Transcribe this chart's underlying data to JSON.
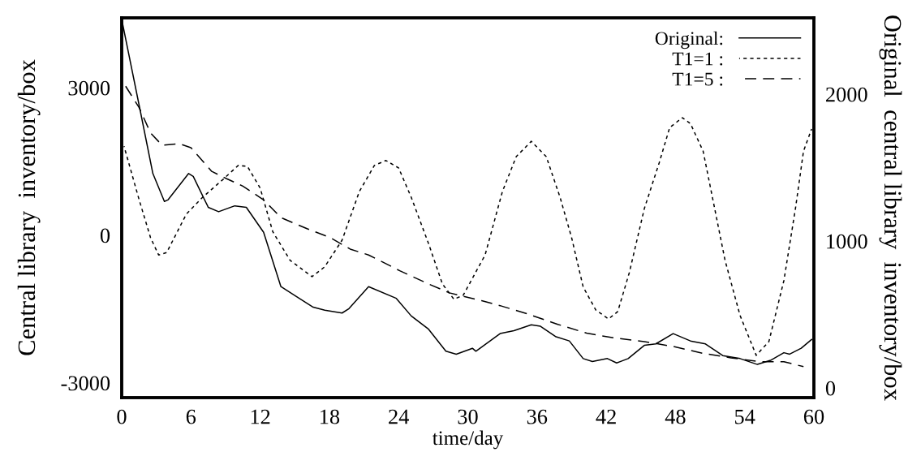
{
  "chart_data": {
    "type": "line",
    "xlabel": "time/day",
    "ylabel": "Central library  inventory/box",
    "y2label": "Original  central library  inventory/box",
    "xlim": [
      0,
      60
    ],
    "xticks": [
      0,
      6,
      12,
      18,
      24,
      30,
      36,
      42,
      48,
      54,
      60
    ],
    "ylim": [
      -3300,
      4420
    ],
    "yticks": [
      -3000,
      0,
      3000
    ],
    "y2lim": [
      -66,
      2520
    ],
    "y2ticks": [
      0,
      1000,
      2000
    ],
    "grid": false,
    "legend": "top right",
    "marker": "none",
    "series": [
      {
        "name": "Original:",
        "color": "#000000",
        "axis": "y2",
        "line_style": "solid",
        "x": [
          0,
          1.6,
          2.7,
          3.7,
          4.0,
          5.8,
          6.2,
          7.5,
          8.4,
          9.8,
          10.8,
          12.3,
          13.8,
          15.0,
          16.6,
          17.6,
          19.1,
          19.7,
          21.4,
          23.8,
          25.1,
          26.6,
          28.1,
          29.0,
          30.4,
          30.7,
          32.8,
          34.0,
          35.5,
          36.3,
          37.6,
          38.8,
          40.0,
          40.8,
          42.1,
          42.9,
          43.9,
          45.3,
          46.3,
          47.8,
          49.3,
          50.6,
          52.1,
          53.6,
          55.1,
          56.3,
          57.4,
          57.9,
          58.9,
          59.8
        ],
        "values": [
          2510,
          1890,
          1460,
          1270,
          1280,
          1460,
          1440,
          1230,
          1200,
          1240,
          1230,
          1060,
          690,
          630,
          550,
          530,
          510,
          540,
          690,
          610,
          490,
          400,
          250,
          230,
          270,
          250,
          370,
          390,
          430,
          420,
          350,
          320,
          200,
          180,
          200,
          170,
          200,
          290,
          300,
          370,
          320,
          300,
          220,
          200,
          160,
          190,
          240,
          230,
          270,
          330
        ]
      },
      {
        "name": "T1=1 :",
        "color": "#000000",
        "axis": "y",
        "line_style": "dotted",
        "x": [
          0.2,
          1.5,
          2.5,
          3.2,
          3.9,
          5.6,
          7.0,
          8.8,
          10.1,
          10.9,
          12.0,
          13.1,
          14.6,
          16.5,
          17.6,
          19.1,
          20.6,
          21.9,
          22.9,
          24.0,
          25.1,
          26.6,
          27.8,
          28.8,
          29.6,
          31.5,
          33.0,
          34.2,
          35.5,
          36.8,
          38.0,
          39.0,
          40.0,
          41.1,
          42.2,
          43.0,
          44.0,
          45.3,
          46.6,
          47.5,
          48.6,
          49.3,
          50.4,
          51.3,
          52.3,
          53.6,
          55.0,
          56.1,
          57.4,
          58.4,
          59.1,
          59.8
        ],
        "values": [
          1810,
          730,
          -50,
          -400,
          -350,
          430,
          770,
          1140,
          1420,
          1400,
          960,
          70,
          -510,
          -840,
          -640,
          -100,
          890,
          1420,
          1520,
          1370,
          770,
          -170,
          -990,
          -1300,
          -1220,
          -400,
          890,
          1600,
          1910,
          1600,
          770,
          -50,
          -1050,
          -1520,
          -1700,
          -1550,
          -760,
          540,
          1480,
          2190,
          2390,
          2270,
          1710,
          660,
          -510,
          -1630,
          -2440,
          -2160,
          -920,
          540,
          1710,
          2160
        ]
      },
      {
        "name": "T1=5 :",
        "color": "#000000",
        "axis": "y",
        "line_style": "dashed",
        "x": [
          0.07,
          1.5,
          2.5,
          3.5,
          5.0,
          6.0,
          7.8,
          9.1,
          10.5,
          12.3,
          13.8,
          16.1,
          18.1,
          19.8,
          21.4,
          24.1,
          26.6,
          28.4,
          31.2,
          32.8,
          35.2,
          37.8,
          40.3,
          42.8,
          45.3,
          47.8,
          50.4,
          52.8,
          55.3,
          57.4,
          59.1
        ],
        "values": [
          3130,
          2600,
          2080,
          1830,
          1860,
          1780,
          1300,
          1150,
          1000,
          720,
          360,
          130,
          -50,
          -280,
          -400,
          -720,
          -990,
          -1170,
          -1330,
          -1430,
          -1600,
          -1810,
          -1990,
          -2090,
          -2160,
          -2260,
          -2400,
          -2490,
          -2570,
          -2570,
          -2670
        ]
      }
    ]
  }
}
